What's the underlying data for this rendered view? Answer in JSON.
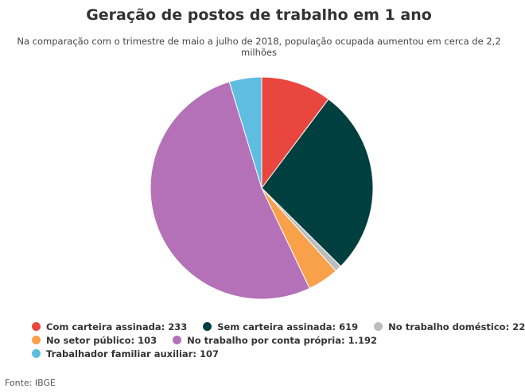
{
  "chart_data": {
    "type": "pie",
    "title": "Geração de postos de trabalho em 1 ano",
    "subtitle": "Na comparação com o trimestre de maio a julho de 2018, população ocupada aumentou em cerca de 2,2 milhões",
    "source": "Fonte: IBGE",
    "legend_position": "bottom",
    "slices": [
      {
        "label": "Com carteira assinada",
        "value": 233,
        "value_label": "233",
        "color": "#E8463E"
      },
      {
        "label": "Sem carteira assinada",
        "value": 619,
        "value_label": "619",
        "color": "#003F40"
      },
      {
        "label": "No trabalho doméstico",
        "value": 22,
        "value_label": "22",
        "color": "#BDBDBD"
      },
      {
        "label": "No setor público",
        "value": 103,
        "value_label": "103",
        "color": "#F9A04B"
      },
      {
        "label": "No trabalho por conta própria",
        "value": 1192,
        "value_label": "1.192",
        "color": "#B471B8"
      },
      {
        "label": "Trabalhador familiar auxiliar",
        "value": 107,
        "value_label": "107",
        "color": "#5FBDE1"
      }
    ]
  }
}
